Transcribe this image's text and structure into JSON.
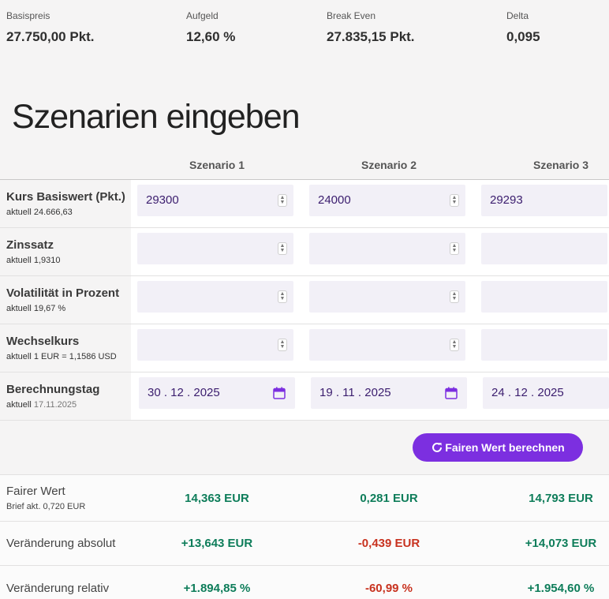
{
  "stats": [
    {
      "label": "Basispreis",
      "value": "27.750,00 Pkt."
    },
    {
      "label": "Aufgeld",
      "value": "12,60 %"
    },
    {
      "label": "Break Even",
      "value": "27.835,15 Pkt."
    },
    {
      "label": "Delta",
      "value": "0,095"
    }
  ],
  "heading": "Szenarien eingeben",
  "scenarios": [
    "Szenario 1",
    "Szenario 2",
    "Szenario 3"
  ],
  "rows": [
    {
      "title": "Kurs Basiswert (Pkt.)",
      "sub": "aktuell 24.666,63",
      "values": [
        "29300",
        "24000",
        "29293"
      ]
    },
    {
      "title": "Zinssatz",
      "sub": "aktuell 1,9310",
      "values": [
        "",
        "",
        ""
      ]
    },
    {
      "title": "Volatilität in Prozent",
      "sub": "aktuell 19,67 %",
      "values": [
        "",
        "",
        ""
      ]
    },
    {
      "title": "Wechselkurs",
      "sub": "aktuell 1 EUR = 1,1586 USD",
      "values": [
        "",
        "",
        ""
      ]
    },
    {
      "title": "Berechnungstag",
      "sub_prefix": "aktuell",
      "sub_date": "17.11.2025",
      "values": [
        "30 . 12 . 2025",
        "19 . 11 . 2025",
        "24 . 12 . 2025"
      ]
    }
  ],
  "button_label": "Fairen Wert berechnen",
  "results": [
    {
      "label": "Fairer Wert",
      "sub": "Brief akt. 0,720 EUR",
      "values": [
        "14,363 EUR",
        "0,281 EUR",
        "14,793 EUR"
      ]
    },
    {
      "label": "Veränderung absolut",
      "values": [
        "+13,643 EUR",
        "-0,439 EUR",
        "+14,073 EUR"
      ]
    },
    {
      "label": "Veränderung relativ",
      "values": [
        "+1.894,85 %",
        "-60,99 %",
        "+1.954,60 %"
      ]
    }
  ],
  "colors": {
    "accent": "#7c2fe0",
    "positive": "#0e7d5a",
    "negative": "#c8321f",
    "input_bg": "#f2f0f7"
  }
}
